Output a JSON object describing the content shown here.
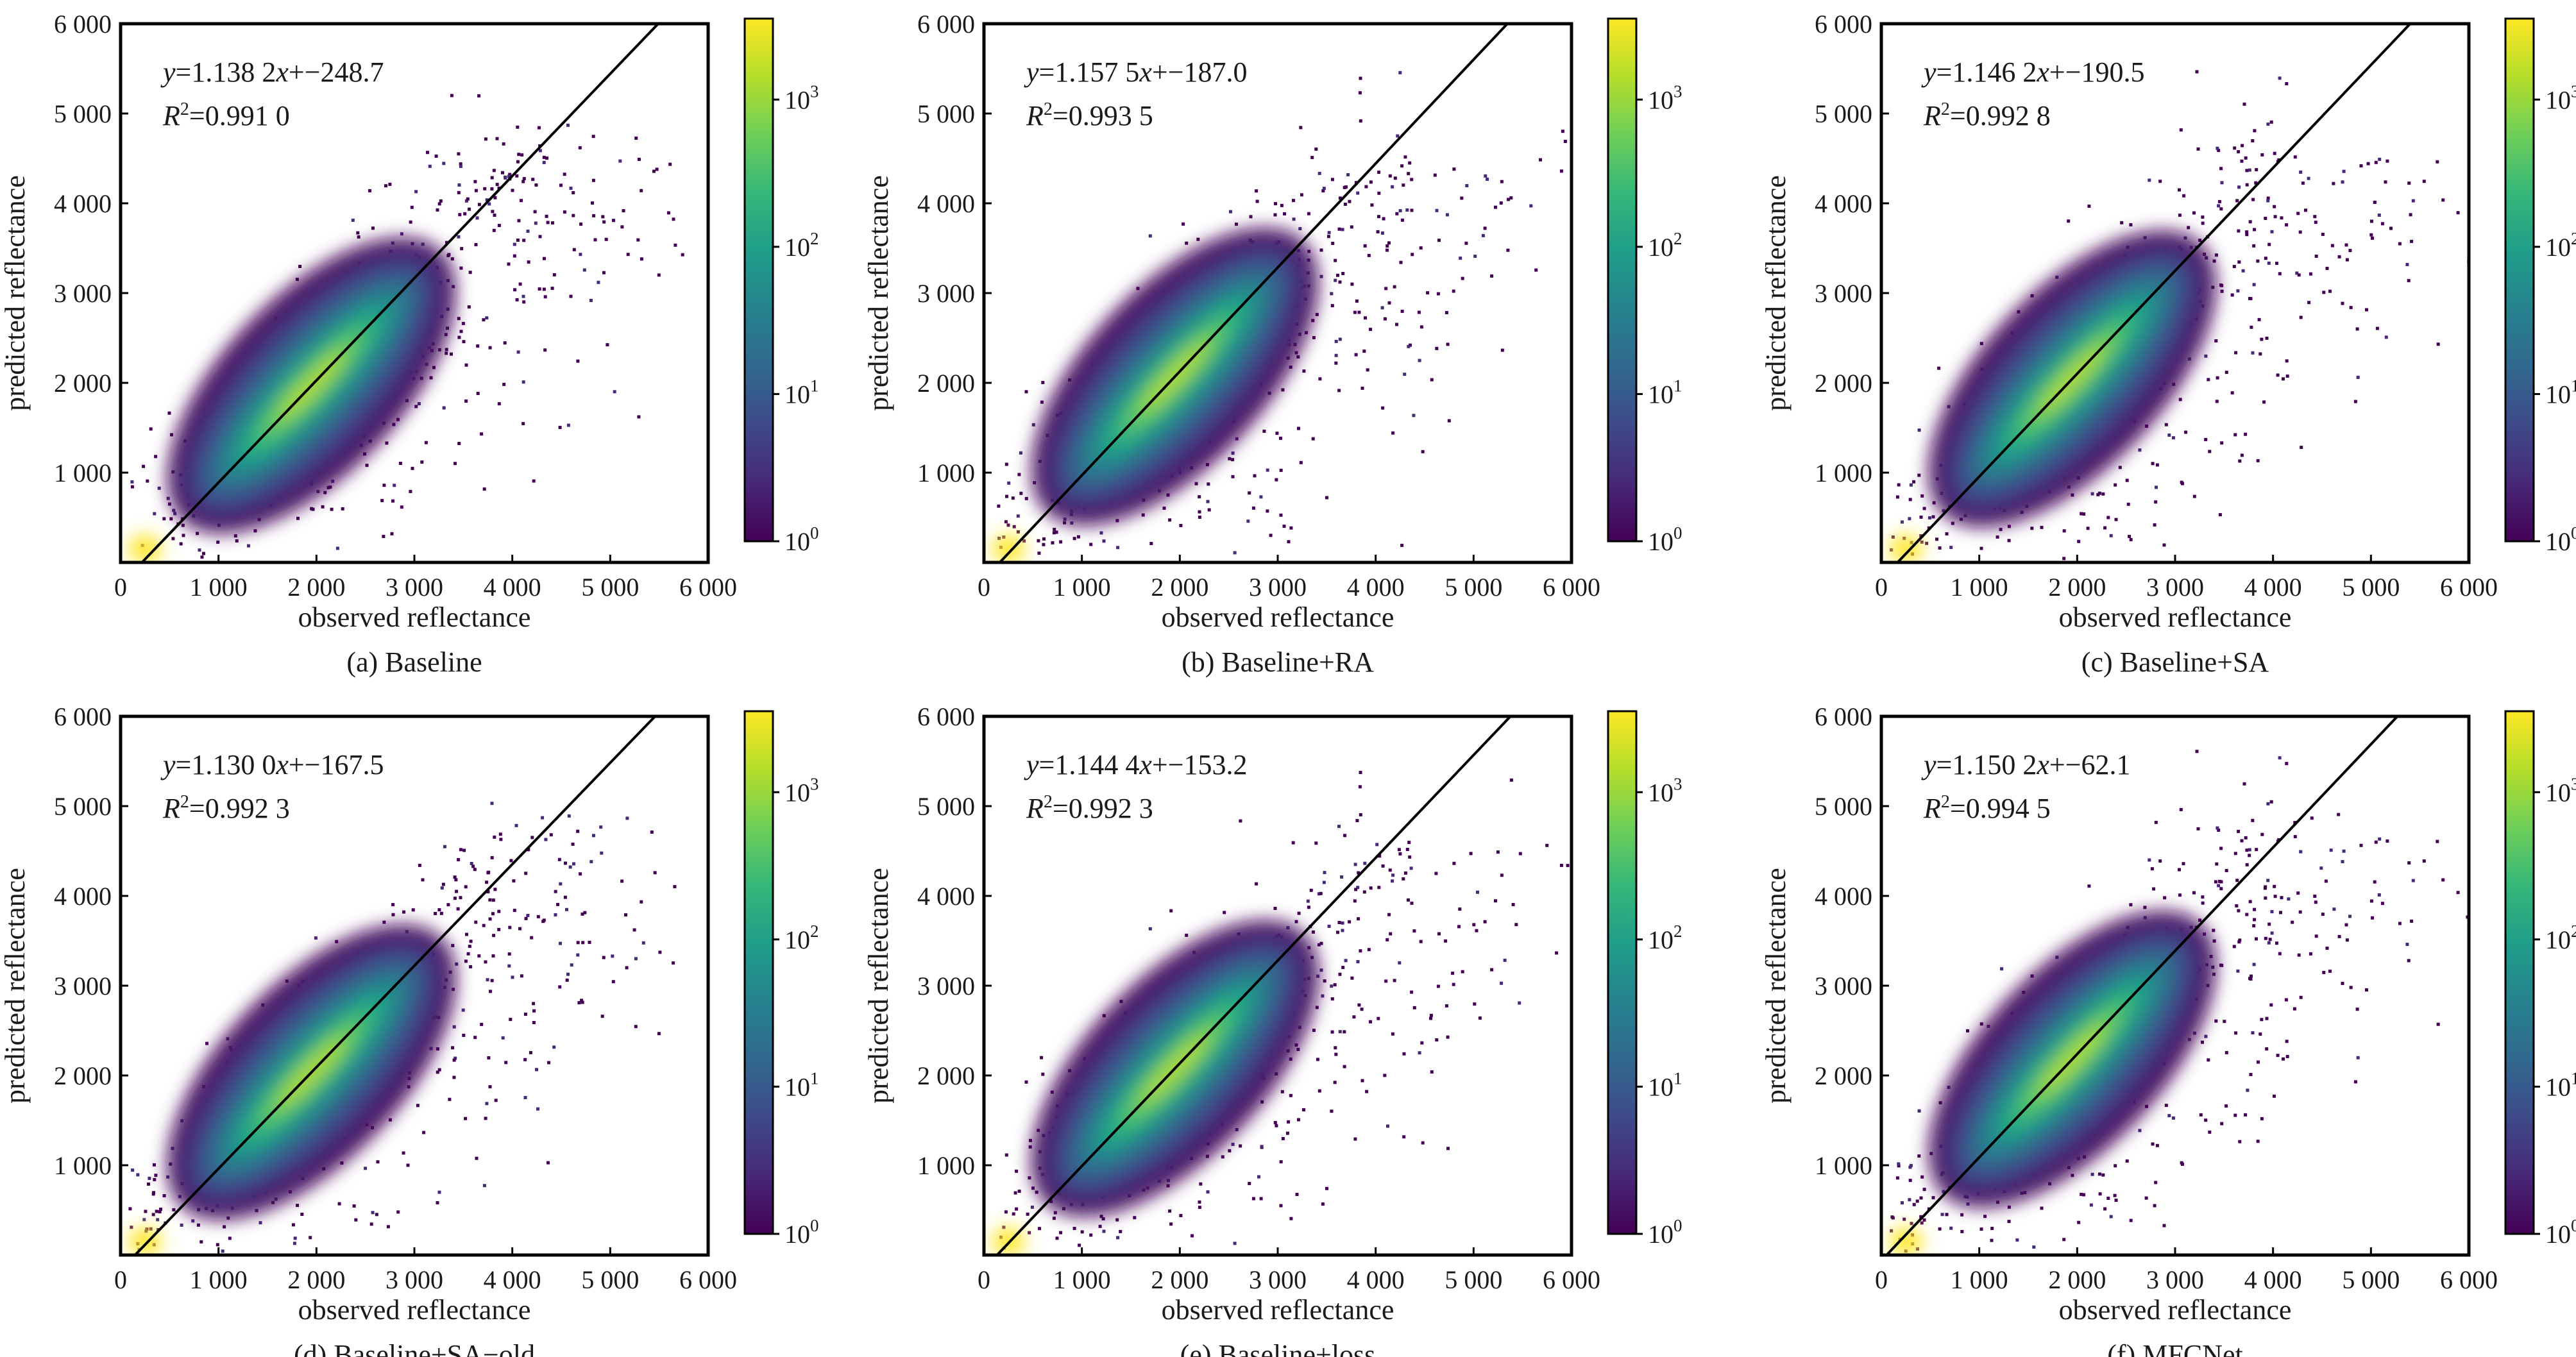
{
  "figure": {
    "colorbar": {
      "ticks": [
        "10",
        "10",
        "10",
        "10"
      ],
      "exponents": [
        "0",
        "1",
        "2",
        "3"
      ],
      "colors": [
        "#440154",
        "#482878",
        "#3e4a89",
        "#31688e",
        "#26828e",
        "#1f9e89",
        "#35b779",
        "#6ece58",
        "#b5de2b",
        "#fde725"
      ]
    },
    "axis_ticks": [
      "0",
      "1 000",
      "2 000",
      "3 000",
      "4 000",
      "5 000",
      "6 000"
    ],
    "y_ticks": [
      "1 000",
      "2 000",
      "3 000",
      "4 000",
      "5 000",
      "6 000"
    ],
    "xlabel": "observed reflectance",
    "ylabel": "predicted reflectance"
  },
  "chart_data": [
    {
      "type": "scatter",
      "subtitle": "(a) Baseline",
      "equation": "y=1.138 2x+−248.7",
      "eq_y": "y",
      "eq_rest1": "=1.138 2",
      "eq_x": "x",
      "eq_rest2": "+−248.7",
      "r2_label": "R",
      "r2_value": "=0.991 0",
      "slope": 1.1382,
      "intercept": -248.7,
      "r2": 0.991,
      "xlim": [
        0,
        6000
      ],
      "ylim": [
        0,
        6000
      ],
      "xlabel": "observed reflectance",
      "ylabel": "predicted reflectance",
      "colorbar": {
        "scale": "log",
        "range": [
          1,
          5000
        ]
      }
    },
    {
      "type": "scatter",
      "subtitle": "(b) Baseline+RA",
      "equation": "y=1.157 5x+−187.0",
      "eq_y": "y",
      "eq_rest1": "=1.157 5",
      "eq_x": "x",
      "eq_rest2": "+−187.0",
      "r2_label": "R",
      "r2_value": "=0.993 5",
      "slope": 1.1575,
      "intercept": -187.0,
      "r2": 0.9935,
      "xlim": [
        0,
        6000
      ],
      "ylim": [
        0,
        6000
      ],
      "xlabel": "observed reflectance",
      "ylabel": "predicted reflectance",
      "colorbar": {
        "scale": "log",
        "range": [
          1,
          5000
        ]
      }
    },
    {
      "type": "scatter",
      "subtitle": "(c) Baseline+SA",
      "equation": "y=1.146 2x+−190.5",
      "eq_y": "y",
      "eq_rest1": "=1.146 2",
      "eq_x": "x",
      "eq_rest2": "+−190.5",
      "r2_label": "R",
      "r2_value": "=0.992 8",
      "slope": 1.1462,
      "intercept": -190.5,
      "r2": 0.9928,
      "xlim": [
        0,
        6000
      ],
      "ylim": [
        0,
        6000
      ],
      "xlabel": "observed reflectance",
      "ylabel": "predicted reflectance",
      "colorbar": {
        "scale": "log",
        "range": [
          1,
          5000
        ]
      }
    },
    {
      "type": "scatter",
      "subtitle": "(d) Baseline+SA−old",
      "equation": "y=1.130 0x+−167.5",
      "eq_y": "y",
      "eq_rest1": "=1.130 0",
      "eq_x": "x",
      "eq_rest2": "+−167.5",
      "r2_label": "R",
      "r2_value": "=0.992 3",
      "slope": 1.13,
      "intercept": -167.5,
      "r2": 0.9923,
      "xlim": [
        0,
        6000
      ],
      "ylim": [
        0,
        6000
      ],
      "xlabel": "observed reflectance",
      "ylabel": "predicted reflectance",
      "colorbar": {
        "scale": "log",
        "range": [
          1,
          5000
        ]
      }
    },
    {
      "type": "scatter",
      "subtitle": "(e) Baseline+loss",
      "equation": "y=1.144 4x+−153.2",
      "eq_y": "y",
      "eq_rest1": "=1.144 4",
      "eq_x": "x",
      "eq_rest2": "+−153.2",
      "r2_label": "R",
      "r2_value": "=0.992 3",
      "slope": 1.1444,
      "intercept": -153.2,
      "r2": 0.9923,
      "xlim": [
        0,
        6000
      ],
      "ylim": [
        0,
        6000
      ],
      "xlabel": "observed reflectance",
      "ylabel": "predicted reflectance",
      "colorbar": {
        "scale": "log",
        "range": [
          1,
          5000
        ]
      }
    },
    {
      "type": "scatter",
      "subtitle": "(f) MFCNet",
      "equation": "y=1.150 2x+−62.1",
      "eq_y": "y",
      "eq_rest1": "=1.150 2",
      "eq_x": "x",
      "eq_rest2": "+−62.1",
      "r2_label": "R",
      "r2_value": "=0.994 5",
      "slope": 1.1502,
      "intercept": -62.1,
      "r2": 0.9945,
      "xlim": [
        0,
        6000
      ],
      "ylim": [
        0,
        6000
      ],
      "xlabel": "observed reflectance",
      "ylabel": "predicted reflectance",
      "colorbar": {
        "scale": "log",
        "range": [
          1,
          5000
        ]
      }
    }
  ]
}
